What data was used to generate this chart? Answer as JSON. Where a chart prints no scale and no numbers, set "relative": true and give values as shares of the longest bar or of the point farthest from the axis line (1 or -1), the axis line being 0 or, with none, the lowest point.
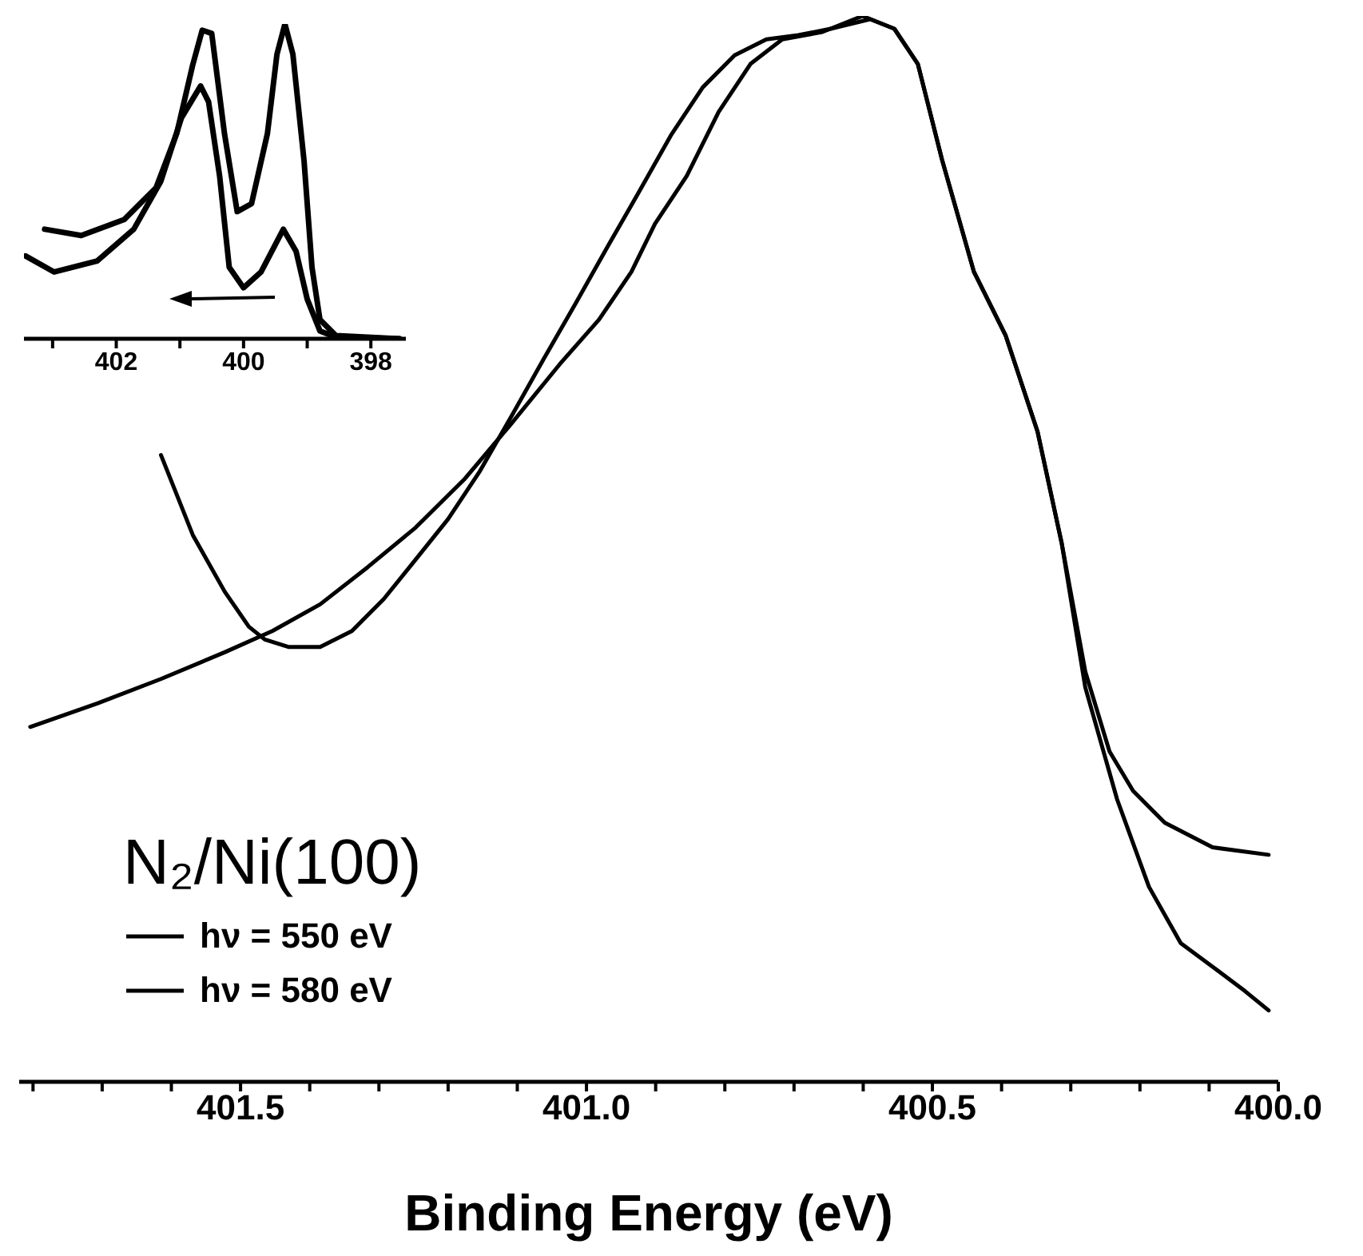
{
  "chart_data": [
    {
      "type": "line",
      "xlabel": "Binding Energy (eV)",
      "legend_title": "N₂/Ni(100)",
      "legend": "bottom left",
      "relative": true,
      "grid": false,
      "xlim": [
        401.82,
        400.0
      ],
      "xticks": [
        {
          "value": 401.8,
          "label": null
        },
        {
          "value": 401.7,
          "label": null
        },
        {
          "value": 401.6,
          "label": null
        },
        {
          "value": 401.5,
          "label": "401.5"
        },
        {
          "value": 401.4,
          "label": null
        },
        {
          "value": 401.3,
          "label": null
        },
        {
          "value": 401.2,
          "label": null
        },
        {
          "value": 401.1,
          "label": null
        },
        {
          "value": 401.0,
          "label": "401.0"
        },
        {
          "value": 400.9,
          "label": null
        },
        {
          "value": 400.8,
          "label": null
        },
        {
          "value": 400.7,
          "label": null
        },
        {
          "value": 400.6,
          "label": null
        },
        {
          "value": 400.5,
          "label": "400.5"
        },
        {
          "value": 400.4,
          "label": null
        },
        {
          "value": 400.3,
          "label": null
        },
        {
          "value": 400.2,
          "label": null
        },
        {
          "value": 400.1,
          "label": null
        },
        {
          "value": 400.0,
          "label": "400.0"
        }
      ],
      "series": [
        {
          "name": "hν = 550 eV",
          "color": "#000000",
          "x": [
            401.804,
            401.707,
            401.615,
            401.523,
            401.454,
            401.385,
            401.316,
            401.247,
            401.177,
            401.108,
            401.039,
            400.982,
            400.935,
            400.901,
            400.855,
            400.809,
            400.763,
            400.717,
            400.659,
            400.601,
            400.555,
            400.521,
            400.486,
            400.44,
            400.394,
            400.348,
            400.313,
            400.279,
            400.244,
            400.21,
            400.164,
            400.095,
            400.014
          ],
          "values": [
            0.333,
            0.355,
            0.378,
            0.403,
            0.423,
            0.448,
            0.483,
            0.52,
            0.565,
            0.618,
            0.673,
            0.715,
            0.76,
            0.805,
            0.85,
            0.91,
            0.955,
            0.978,
            0.985,
            1.0,
            0.988,
            0.955,
            0.865,
            0.76,
            0.7,
            0.61,
            0.505,
            0.385,
            0.31,
            0.273,
            0.243,
            0.22,
            0.213
          ]
        },
        {
          "name": "hν = 580 eV",
          "color": "#000000",
          "x": [
            401.615,
            401.569,
            401.523,
            401.488,
            401.465,
            401.431,
            401.385,
            401.339,
            401.293,
            401.247,
            401.2,
            401.154,
            401.108,
            401.062,
            401.016,
            400.97,
            400.924,
            400.878,
            400.832,
            400.786,
            400.74,
            400.694,
            400.647,
            400.59,
            400.555,
            400.521,
            400.486,
            400.44,
            400.394,
            400.348,
            400.313,
            400.279,
            400.233,
            400.187,
            400.141,
            400.095,
            400.048,
            400.014
          ],
          "values": [
            0.588,
            0.513,
            0.46,
            0.427,
            0.415,
            0.408,
            0.408,
            0.423,
            0.453,
            0.49,
            0.528,
            0.573,
            0.625,
            0.678,
            0.73,
            0.783,
            0.835,
            0.888,
            0.933,
            0.963,
            0.978,
            0.982,
            0.988,
            0.997,
            0.988,
            0.955,
            0.865,
            0.76,
            0.7,
            0.61,
            0.505,
            0.37,
            0.265,
            0.183,
            0.13,
            0.108,
            0.085,
            0.067
          ]
        }
      ]
    },
    {
      "type": "line",
      "relative": true,
      "grid": false,
      "xlim": [
        403.45,
        397.45
      ],
      "xticks": [
        {
          "value": 403,
          "label": null
        },
        402,
        {
          "value": 401,
          "label": null
        },
        400,
        {
          "value": 399,
          "label": null
        },
        398
      ],
      "series": [
        {
          "color": "#000000",
          "x": [
            403.125,
            402.55,
            401.875,
            401.375,
            401.05,
            400.8,
            400.65,
            400.5,
            400.3,
            400.1,
            399.875,
            399.625,
            399.475,
            399.35,
            399.225,
            399.05,
            398.925,
            398.8,
            398.55,
            397.55
          ],
          "values": [
            0.348,
            0.328,
            0.379,
            0.48,
            0.652,
            0.869,
            0.98,
            0.97,
            0.652,
            0.404,
            0.429,
            0.652,
            0.904,
            1.0,
            0.904,
            0.566,
            0.227,
            0.061,
            0.01,
            0
          ]
        },
        {
          "color": "#000000",
          "x": [
            403.425,
            402.975,
            402.3,
            401.725,
            401.3,
            400.975,
            400.675,
            400.55,
            400.375,
            400.225,
            400.0,
            399.725,
            399.375,
            399.175,
            399.0,
            398.8,
            398.55,
            397.55
          ],
          "values": [
            0.263,
            0.212,
            0.247,
            0.348,
            0.5,
            0.702,
            0.803,
            0.753,
            0.515,
            0.227,
            0.162,
            0.212,
            0.348,
            0.278,
            0.126,
            0.025,
            0.005,
            0
          ]
        }
      ]
    }
  ]
}
